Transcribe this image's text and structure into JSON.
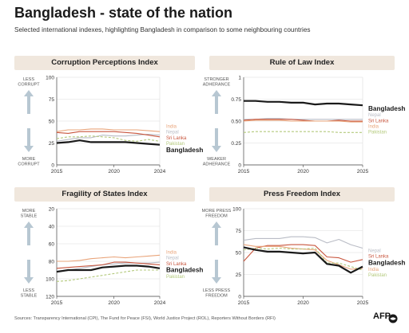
{
  "title": "Bangladesh - state of the nation",
  "subtitle": "Selected international indexes, highlighting Bangladesh in comparison to some neighbouring countries",
  "footer": "Sources: Transparency International (CPI), The Fund for Peace (FSI), World Justice Project (ROL), Reporters Without Borders (RFI)",
  "brand": "AFP",
  "colors": {
    "Bangladesh": "#1a1a1a",
    "India": "#e9a47a",
    "Nepal": "#b9bcc5",
    "Sri Lanka": "#c8553d",
    "Pakistan": "#b3c97b",
    "arrow": "#b7c7d2",
    "panel_bg": "#f0e7dd"
  },
  "chart_data": [
    {
      "type": "line",
      "title": "Corruption Perceptions Index",
      "xlabel": "",
      "ylabel": "",
      "xlim": [
        2015,
        2024
      ],
      "ylim": [
        0,
        100
      ],
      "x_ticks": [
        2015,
        2020,
        2024
      ],
      "y_ticks": [
        0,
        25,
        50,
        75,
        100
      ],
      "y_inverted": false,
      "grid": true,
      "arrow_top": [
        "LESS",
        "CORRUPT"
      ],
      "arrow_bottom": [
        "MORE",
        "CORRUPT"
      ],
      "x": [
        2015,
        2016,
        2017,
        2018,
        2019,
        2020,
        2021,
        2022,
        2023,
        2024
      ],
      "series": [
        {
          "name": "India",
          "values": [
            38,
            40,
            40,
            41,
            41,
            40,
            40,
            40,
            39,
            38
          ],
          "style": "solid"
        },
        {
          "name": "Nepal",
          "values": [
            27,
            29,
            31,
            31,
            34,
            33,
            33,
            34,
            35,
            34
          ],
          "style": "solid"
        },
        {
          "name": "Sri Lanka",
          "values": [
            37,
            36,
            38,
            38,
            38,
            38,
            37,
            36,
            34,
            32
          ],
          "style": "solid"
        },
        {
          "name": "Pakistan",
          "values": [
            30,
            32,
            32,
            33,
            32,
            31,
            28,
            27,
            29,
            27
          ],
          "style": "dashed"
        },
        {
          "name": "Bangladesh",
          "values": [
            25,
            26,
            28,
            26,
            26,
            26,
            26,
            25,
            24,
            23
          ],
          "style": "bold"
        }
      ],
      "label_order": [
        "India",
        "Nepal",
        "Sri Lanka",
        "Pakistan",
        "Bangladesh"
      ]
    },
    {
      "type": "line",
      "title": "Rule of Law Index",
      "xlabel": "",
      "ylabel": "",
      "xlim": [
        2015,
        2025
      ],
      "ylim": [
        0,
        1
      ],
      "x_ticks": [
        2015,
        2020,
        2025
      ],
      "y_ticks": [
        0,
        0.25,
        0.5,
        0.75,
        1
      ],
      "y_tick_labels": [
        "0",
        "0.25",
        "0.50",
        "0.75",
        "1"
      ],
      "y_inverted": false,
      "grid": true,
      "arrow_top": [
        "STRONGER",
        "ADHERANCE"
      ],
      "arrow_bottom": [
        "WEAKER",
        "ADHERANCE"
      ],
      "x": [
        2015,
        2016,
        2017,
        2018,
        2019,
        2020,
        2021,
        2022,
        2023,
        2024,
        2025
      ],
      "series": [
        {
          "name": "Bangladesh",
          "values": [
            0.73,
            0.73,
            0.72,
            0.72,
            0.71,
            0.71,
            0.69,
            0.7,
            0.7,
            0.69,
            0.68
          ],
          "style": "bold"
        },
        {
          "name": "Nepal",
          "values": [
            0.52,
            0.52,
            0.53,
            0.53,
            0.52,
            0.52,
            0.52,
            0.52,
            0.52,
            0.52,
            0.52
          ],
          "style": "solid"
        },
        {
          "name": "Sri Lanka",
          "values": [
            0.51,
            0.52,
            0.52,
            0.52,
            0.52,
            0.51,
            0.5,
            0.5,
            0.51,
            0.5,
            0.5
          ],
          "style": "solid"
        },
        {
          "name": "India",
          "values": [
            0.5,
            0.51,
            0.51,
            0.51,
            0.5,
            0.5,
            0.5,
            0.5,
            0.5,
            0.49,
            0.49
          ],
          "style": "solid"
        },
        {
          "name": "Pakistan",
          "values": [
            0.37,
            0.38,
            0.38,
            0.38,
            0.38,
            0.38,
            0.38,
            0.38,
            0.37,
            0.37,
            0.37
          ],
          "style": "dashed"
        }
      ],
      "label_order": [
        "Bangladesh",
        "Nepal",
        "Sri Lanka",
        "India",
        "Pakistan"
      ]
    },
    {
      "type": "line",
      "title": "Fragility of States Index",
      "xlabel": "",
      "ylabel": "",
      "xlim": [
        2015,
        2024
      ],
      "ylim": [
        20,
        120
      ],
      "x_ticks": [
        2015,
        2020,
        2024
      ],
      "y_ticks": [
        20,
        40,
        60,
        80,
        100,
        120
      ],
      "y_inverted": true,
      "grid": true,
      "arrow_top": [
        "MORE",
        "STABLE"
      ],
      "arrow_bottom": [
        "LESS",
        "STABLE"
      ],
      "x": [
        2015,
        2016,
        2017,
        2018,
        2019,
        2020,
        2021,
        2022,
        2023,
        2024
      ],
      "series": [
        {
          "name": "India",
          "values": [
            80,
            80,
            79,
            77,
            76,
            75,
            76,
            75,
            74,
            73
          ],
          "style": "solid"
        },
        {
          "name": "Nepal",
          "values": [
            91,
            90,
            88,
            86,
            84,
            83,
            82,
            82,
            82,
            81
          ],
          "style": "solid"
        },
        {
          "name": "Sri Lanka",
          "values": [
            88,
            87,
            86,
            85,
            84,
            81,
            81,
            82,
            83,
            84
          ],
          "style": "solid"
        },
        {
          "name": "Bangladesh",
          "values": [
            92,
            90,
            90,
            90,
            87,
            86,
            85,
            85,
            86,
            88
          ],
          "style": "bold"
        },
        {
          "name": "Pakistan",
          "values": [
            103,
            102,
            100,
            98,
            96,
            94,
            92,
            90,
            90,
            90
          ],
          "style": "dashed"
        }
      ],
      "label_order": [
        "India",
        "Nepal",
        "Sri Lanka",
        "Bangladesh",
        "Pakistan"
      ]
    },
    {
      "type": "line",
      "title": "Press Freedom Index",
      "xlabel": "",
      "ylabel": "",
      "xlim": [
        2015,
        2025
      ],
      "ylim": [
        0,
        100
      ],
      "x_ticks": [
        2015,
        2020,
        2025
      ],
      "y_ticks": [
        0,
        25,
        50,
        75,
        100
      ],
      "y_inverted": false,
      "grid": true,
      "arrow_top": [
        "MORE PRESS",
        "FREEDOM"
      ],
      "arrow_bottom": [
        "LESS PRESS",
        "FREEDOM"
      ],
      "x": [
        2015,
        2016,
        2017,
        2018,
        2019,
        2020,
        2021,
        2022,
        2023,
        2024,
        2025
      ],
      "series": [
        {
          "name": "Nepal",
          "values": [
            64,
            66,
            66,
            66,
            68,
            68,
            67,
            61,
            65,
            59,
            55
          ],
          "style": "solid"
        },
        {
          "name": "Sri Lanka",
          "values": [
            40,
            55,
            58,
            58,
            59,
            59,
            58,
            45,
            44,
            39,
            42
          ],
          "style": "solid"
        },
        {
          "name": "Bangladesh",
          "values": [
            56,
            53,
            51,
            51,
            50,
            49,
            50,
            37,
            35,
            27,
            34
          ],
          "style": "bold"
        },
        {
          "name": "India",
          "values": [
            59,
            57,
            57,
            57,
            55,
            54,
            53,
            41,
            36,
            31,
            32
          ],
          "style": "solid"
        },
        {
          "name": "Pakistan",
          "values": [
            53,
            55,
            54,
            55,
            54,
            54,
            55,
            38,
            38,
            34,
            30
          ],
          "style": "dashed"
        }
      ],
      "label_order": [
        "Nepal",
        "Sri Lanka",
        "Bangladesh",
        "India",
        "Pakistan"
      ]
    }
  ]
}
